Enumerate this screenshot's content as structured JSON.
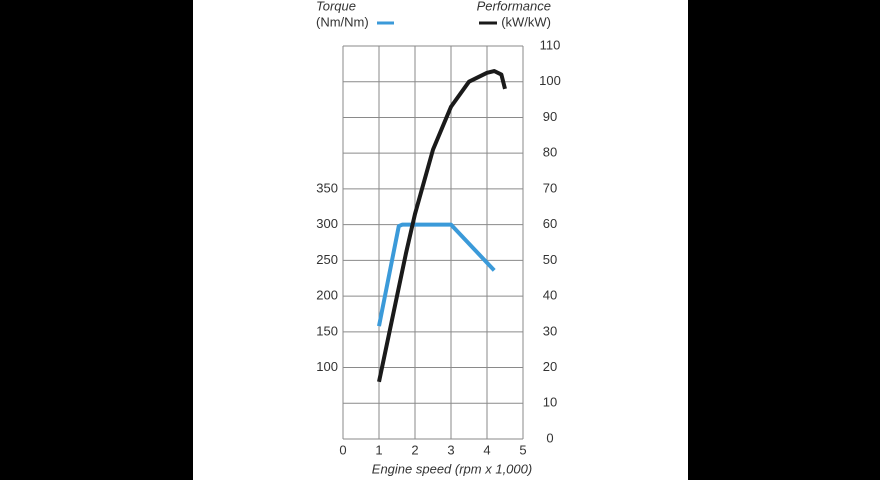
{
  "chart_data": {
    "type": "line",
    "xlabel": "Engine speed (rpm x 1,000)",
    "xlim": [
      0,
      5
    ],
    "xticks": [
      0,
      1,
      2,
      3,
      4,
      5
    ],
    "ylim": [
      0,
      550
    ],
    "yticks": [
      100,
      150,
      200,
      250,
      300,
      350
    ],
    "y2lim": [
      0,
      110
    ],
    "y2ticks": [
      0,
      10,
      20,
      30,
      40,
      50,
      60,
      70,
      80,
      90,
      100,
      110
    ],
    "grid": true,
    "series": [
      {
        "name": "Torque",
        "unit": "(Nm/Nm)",
        "color": "#3b9ad9",
        "axis": "y",
        "x": [
          1,
          1.55,
          1.65,
          3,
          4.2
        ],
        "values": [
          158,
          298,
          300,
          300,
          236
        ]
      },
      {
        "name": "Performance",
        "unit": "(kW/kW)",
        "color": "#1a1a1a",
        "axis": "y2",
        "x": [
          1,
          1.25,
          1.5,
          1.75,
          2,
          2.5,
          3,
          3.5,
          4,
          4.2,
          4.4,
          4.5
        ],
        "values": [
          16,
          28,
          40,
          52,
          63,
          81,
          93,
          100,
          102.5,
          103,
          102,
          98
        ]
      }
    ]
  }
}
